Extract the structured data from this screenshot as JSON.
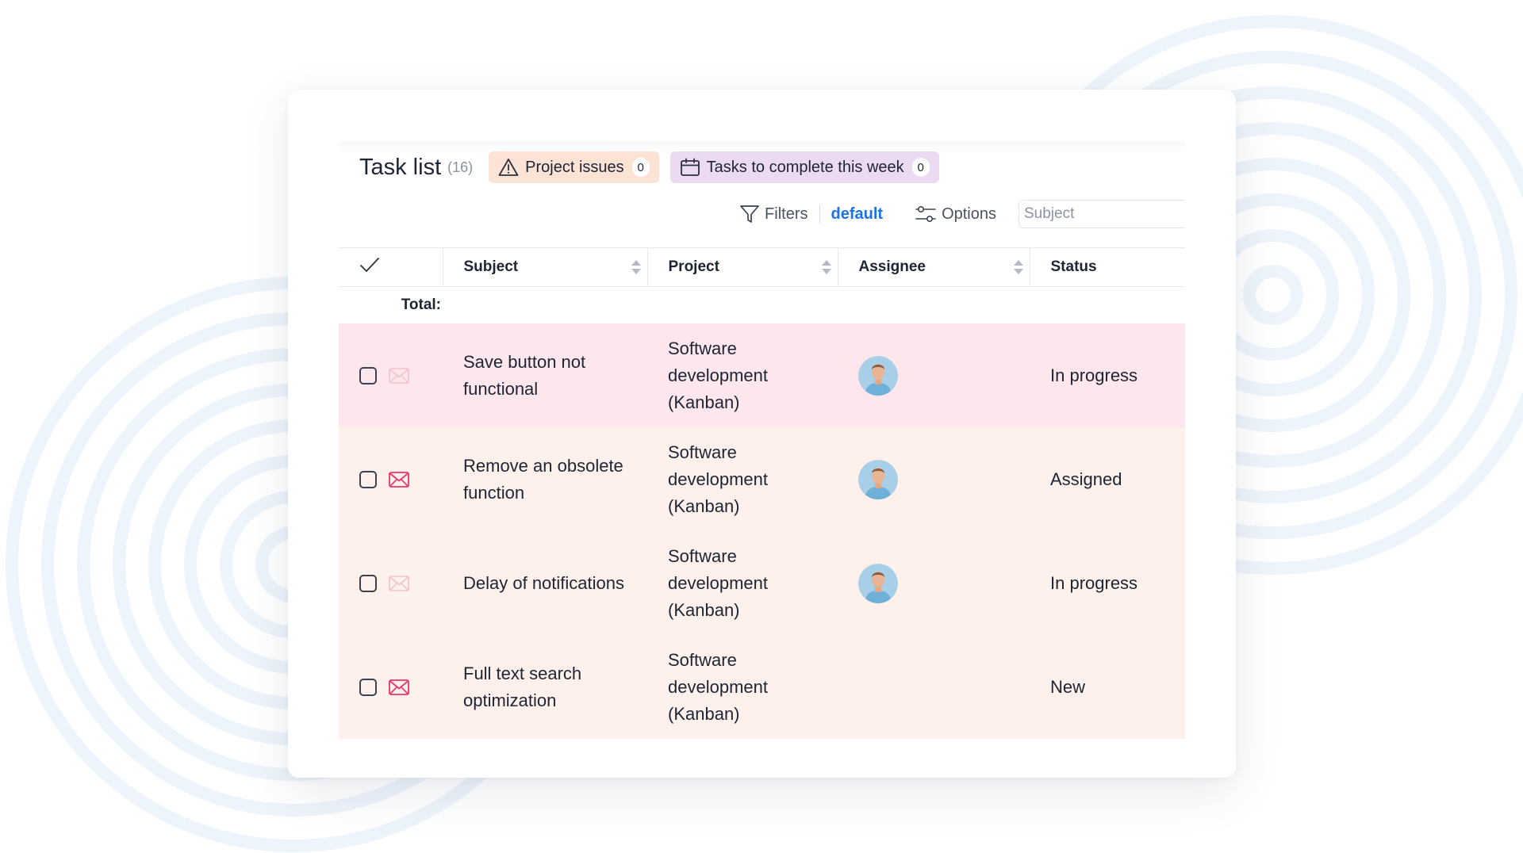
{
  "header": {
    "title": "Task list",
    "count": "(16)",
    "quick_filters": [
      {
        "label": "Project issues",
        "count": "0",
        "icon": "warning-triangle-icon",
        "color": "#fde2d6"
      },
      {
        "label": "Tasks to complete this week",
        "count": "0",
        "icon": "calendar-icon",
        "color": "#ecdaf2"
      }
    ]
  },
  "toolbar": {
    "filters_label": "Filters",
    "default_label": "default",
    "options_label": "Options",
    "search_placeholder": "Subject"
  },
  "table": {
    "columns": [
      "Subject",
      "Project",
      "Assignee",
      "Status"
    ],
    "total_label": "Total:",
    "rows": [
      {
        "subject": "Save button not functional",
        "project": "Software development (Kanban)",
        "has_assignee": true,
        "status": "In progress",
        "mail_active": false,
        "row_color": "#fde6ec"
      },
      {
        "subject": "Remove an obsolete function",
        "project": "Software development (Kanban)",
        "has_assignee": true,
        "status": "Assigned",
        "mail_active": true,
        "row_color": "#fef1ec"
      },
      {
        "subject": "Delay of notifications",
        "project": "Software development (Kanban)",
        "has_assignee": true,
        "status": "In progress",
        "mail_active": false,
        "row_color": "#fef1ec"
      },
      {
        "subject": "Full text search optimization",
        "project": "Software development (Kanban)",
        "has_assignee": false,
        "status": "New",
        "mail_active": true,
        "row_color": "#fef1ec"
      }
    ]
  },
  "colors": {
    "link": "#1a73e8",
    "mail_active": "#e8356d",
    "mail_inactive": "#f2c6cf",
    "ring": "#eef4fb"
  }
}
